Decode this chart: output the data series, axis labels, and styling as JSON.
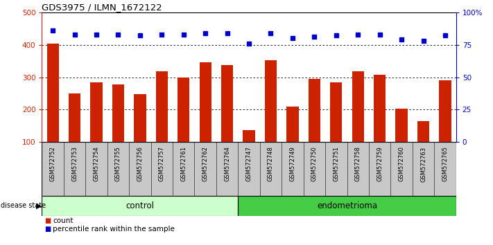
{
  "title": "GDS3975 / ILMN_1672122",
  "samples": [
    "GSM572752",
    "GSM572753",
    "GSM572754",
    "GSM572755",
    "GSM572756",
    "GSM572757",
    "GSM572761",
    "GSM572762",
    "GSM572764",
    "GSM572747",
    "GSM572748",
    "GSM572749",
    "GSM572750",
    "GSM572751",
    "GSM572758",
    "GSM572759",
    "GSM572760",
    "GSM572763",
    "GSM572765"
  ],
  "counts": [
    403,
    250,
    283,
    278,
    248,
    318,
    298,
    345,
    337,
    137,
    352,
    210,
    295,
    285,
    318,
    308,
    203,
    165,
    290
  ],
  "percentiles": [
    86,
    83,
    83,
    83,
    82,
    83,
    83,
    84,
    84,
    76,
    84,
    80,
    81,
    82,
    83,
    83,
    79,
    78,
    82
  ],
  "control_count": 9,
  "endometrioma_count": 10,
  "bar_color": "#cc2200",
  "dot_color": "#0000cc",
  "control_color": "#ccffcc",
  "endometrioma_color": "#44cc44",
  "tick_bg_color": "#c8c8c8",
  "ylim_left": [
    100,
    500
  ],
  "ylim_right": [
    0,
    100
  ],
  "yticks_left": [
    100,
    200,
    300,
    400,
    500
  ],
  "yticks_right": [
    0,
    25,
    50,
    75,
    100
  ],
  "ytick_labels_right": [
    "0",
    "25",
    "50",
    "75",
    "100%"
  ],
  "grid_vals": [
    200,
    300,
    400
  ]
}
